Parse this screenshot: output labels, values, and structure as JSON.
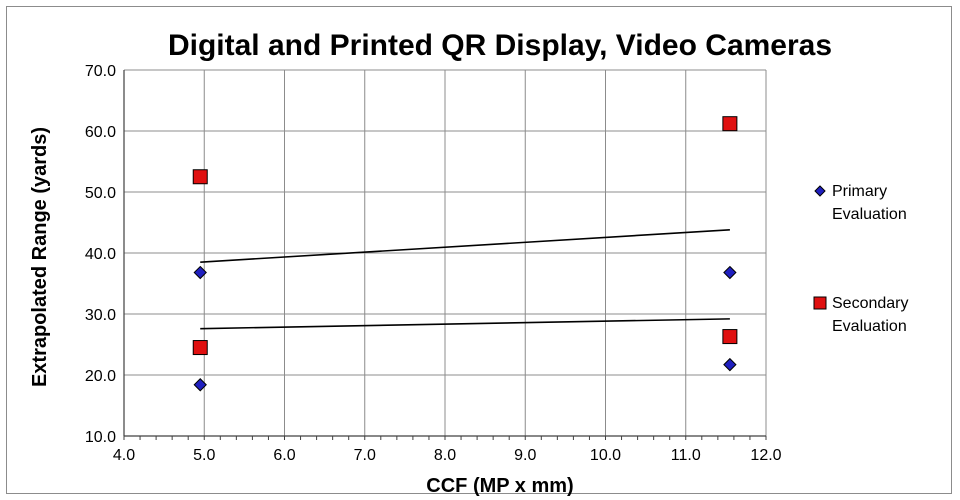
{
  "chart_data": {
    "type": "scatter",
    "title": "Digital and Printed QR Display, Video Cameras",
    "xlabel": "CCF (MP x mm)",
    "ylabel": "Extrapolated Range (yards)",
    "xlim": [
      4.0,
      12.0
    ],
    "ylim": [
      10.0,
      70.0
    ],
    "x_ticks": [
      "4.0",
      "5.0",
      "6.0",
      "7.0",
      "8.0",
      "9.0",
      "10.0",
      "11.0",
      "12.0"
    ],
    "y_ticks": [
      "10.0",
      "20.0",
      "30.0",
      "40.0",
      "50.0",
      "60.0",
      "70.0"
    ],
    "grid": true,
    "legend_position": "right",
    "series": [
      {
        "name": "Primary Evaluation",
        "legend_lines": [
          "Primary",
          "Evaluation"
        ],
        "marker": "diamond",
        "color": "#1f1fbf",
        "points": [
          {
            "x": 4.95,
            "y": 36.8
          },
          {
            "x": 4.95,
            "y": 18.4
          },
          {
            "x": 11.55,
            "y": 36.8
          },
          {
            "x": 11.55,
            "y": 21.7
          }
        ]
      },
      {
        "name": "Secondary Evaluation",
        "legend_lines": [
          "Secondary",
          "Evaluation"
        ],
        "marker": "square",
        "color": "#e01010",
        "points": [
          {
            "x": 4.95,
            "y": 52.5
          },
          {
            "x": 4.95,
            "y": 24.5
          },
          {
            "x": 11.55,
            "y": 61.2
          },
          {
            "x": 11.55,
            "y": 26.3
          }
        ]
      }
    ],
    "trendlines": [
      {
        "x": [
          4.95,
          11.55
        ],
        "y": [
          38.5,
          43.8
        ],
        "color": "#000000"
      },
      {
        "x": [
          4.95,
          11.55
        ],
        "y": [
          27.6,
          29.2
        ],
        "color": "#000000"
      }
    ]
  }
}
